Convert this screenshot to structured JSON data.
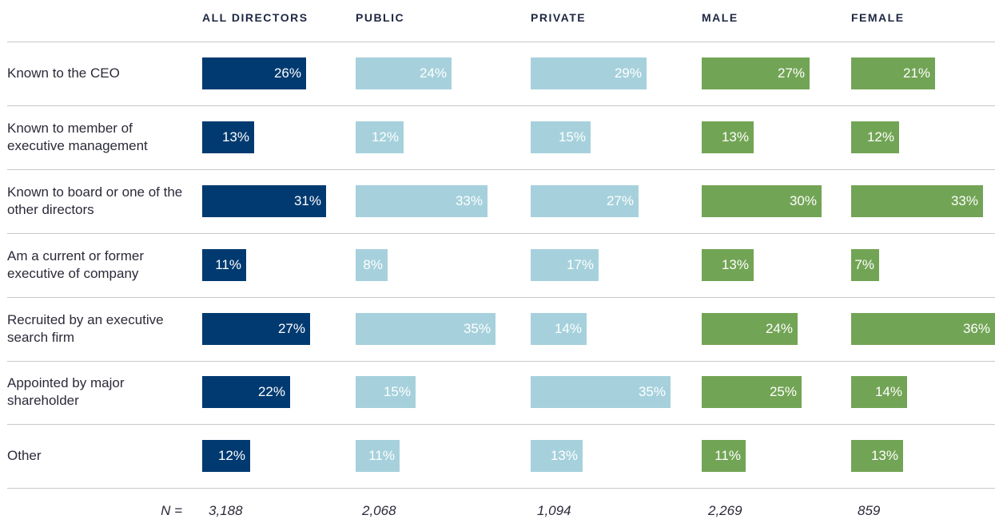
{
  "chart_data": {
    "type": "bar",
    "categories": [
      "Known to the CEO",
      "Known to member of executive management",
      "Known to board or one of the other directors",
      "Am a current or former executive of company",
      "Recruited by an executive search firm",
      "Appointed by major shareholder",
      "Other"
    ],
    "series": [
      {
        "name": "ALL DIRECTORS",
        "color": "#003a70",
        "values": [
          26,
          13,
          31,
          11,
          27,
          22,
          12
        ],
        "value_labels": [
          "26%",
          "13%",
          "31%",
          "11%",
          "27%",
          "22%",
          "12%"
        ]
      },
      {
        "name": "PUBLIC",
        "color": "#a6d1dc",
        "values": [
          24,
          12,
          33,
          8,
          35,
          15,
          11
        ],
        "value_labels": [
          "24%",
          "12%",
          "33%",
          "8%",
          "35%",
          "15%",
          "11%"
        ]
      },
      {
        "name": "PRIVATE",
        "color": "#a6d1dc",
        "values": [
          29,
          15,
          27,
          17,
          14,
          35,
          13
        ],
        "value_labels": [
          "29%",
          "15%",
          "27%",
          "17%",
          "14%",
          "35%",
          "13%"
        ]
      },
      {
        "name": "MALE",
        "color": "#72a455",
        "values": [
          27,
          13,
          30,
          13,
          24,
          25,
          11
        ],
        "value_labels": [
          "27%",
          "13%",
          "30%",
          "13%",
          "24%",
          "25%",
          "11%"
        ]
      },
      {
        "name": "FEMALE",
        "color": "#72a455",
        "values": [
          21,
          12,
          33,
          7,
          36,
          14,
          13
        ],
        "value_labels": [
          "21%",
          "12%",
          "33%",
          "7%",
          "36%",
          "14%",
          "13%"
        ]
      }
    ],
    "footer": {
      "label": "N =",
      "values": [
        "3,188",
        "2,068",
        "1,094",
        "2,269",
        "859"
      ]
    }
  }
}
